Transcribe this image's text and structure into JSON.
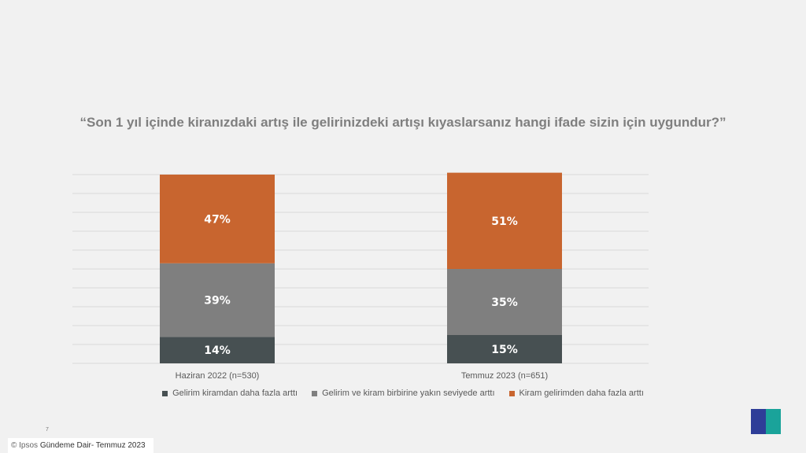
{
  "chart_data": {
    "type": "bar",
    "stacked": true,
    "title": "“Son 1 yıl içinde kiranızdaki artış ile gelirinizdeki  artışı kıyaslarsanız hangi ifade sizin için uygundur?”",
    "categories": [
      "Haziran 2022 (n=530)",
      "Temmuz 2023 (n=651)"
    ],
    "series": [
      {
        "name": "Gelirim kiramdan daha fazla arttı",
        "color": "#475052",
        "values": [
          14,
          15
        ]
      },
      {
        "name": "Gelirim ve kiram birbirine yakın seviyede arttı",
        "color": "#7f7f7f",
        "values": [
          39,
          35
        ]
      },
      {
        "name": "Kiram gelirimden daha fazla arttı",
        "color": "#c8652f",
        "values": [
          47,
          51
        ]
      }
    ],
    "ylim": [
      0,
      100
    ],
    "grid": true,
    "legend": "bottom"
  },
  "footer": {
    "page": "7",
    "brand": "© Ipsos",
    "text": "Gündeme Dair- Temmuz 2023"
  },
  "logo": "Ipsos"
}
